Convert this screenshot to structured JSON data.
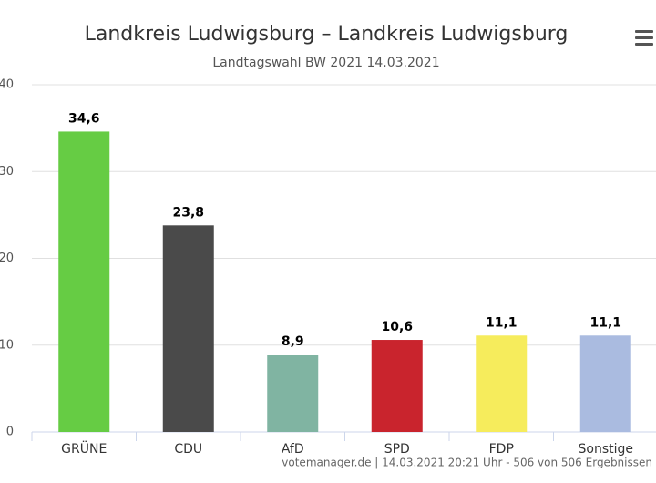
{
  "chart_data": {
    "type": "bar",
    "title": "Landkreis Ludwigsburg – Landkreis Ludwigsburg",
    "subtitle": "Landtagswahl BW 2021 14.03.2021",
    "categories": [
      "GRÜNE",
      "CDU",
      "AfD",
      "SPD",
      "FDP",
      "Sonstige"
    ],
    "values": [
      34.6,
      23.8,
      8.9,
      10.6,
      11.1,
      11.1
    ],
    "value_labels": [
      "34,6",
      "23,8",
      "8,9",
      "10,6",
      "11,1",
      "11,1"
    ],
    "colors": [
      "#66cc44",
      "#4a4a4a",
      "#80b4a2",
      "#c9242d",
      "#f6ec5c",
      "#aabbe0"
    ],
    "ylim": [
      0,
      40
    ],
    "yticks": [
      0,
      10,
      20,
      30,
      40
    ],
    "grid": true,
    "credits": "votemanager.de | 14.03.2021 20:21 Uhr - 506 von 506 Ergebnissen"
  }
}
